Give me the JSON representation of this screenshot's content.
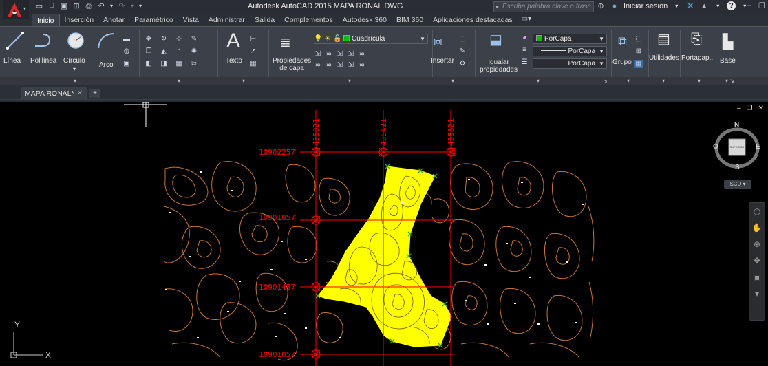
{
  "window": {
    "title": "Autodesk AutoCAD 2015   MAPA RONAL.DWG",
    "search_placeholder": "Escriba palabra clave o frase",
    "signin_label": "Iniciar sesión",
    "help_label": "?"
  },
  "ribbon_tabs": [
    {
      "label": "Inicio",
      "active": true
    },
    {
      "label": "Inserción"
    },
    {
      "label": "Anotar"
    },
    {
      "label": "Paramétrico"
    },
    {
      "label": "Vista"
    },
    {
      "label": "Administrar"
    },
    {
      "label": "Salida"
    },
    {
      "label": "Complementos"
    },
    {
      "label": "Autodesk 360"
    },
    {
      "label": "BIM 360"
    },
    {
      "label": "Aplicaciones destacadas"
    }
  ],
  "ribbon": {
    "draw": {
      "line": "Línea",
      "polyline": "Polilínea",
      "circle": "Círculo",
      "arc": "Arco"
    },
    "annotation": {
      "text": "Texto"
    },
    "layers": {
      "properties": "Propiedades\nde capa",
      "properties_l1": "Propiedades",
      "properties_l2": "de capa",
      "current_layer": "Cuadrícula",
      "layer_color": "#00c000"
    },
    "block": {
      "insert": "Insertar"
    },
    "properties": {
      "match_l1": "Igualar",
      "match_l2": "propiedades",
      "color": "PorCapa",
      "linetype": "PorCapa",
      "lineweight": "PorCapa"
    },
    "groups": {
      "group": "Grupo"
    },
    "utilities": {
      "label": "Utilidades"
    },
    "clipboard": {
      "label": "Portapap..."
    },
    "view": {
      "base": "Base"
    }
  },
  "document_tab": {
    "label": "MAPA RONAL*"
  },
  "drawing": {
    "grid_labels_y": [
      "10902257",
      "10901857",
      "10901457",
      "10901057"
    ],
    "grid_labels_x": [
      "435021",
      "435421",
      "435821"
    ],
    "parcel_fill": "#ffff00",
    "grid_color": "#ff0000",
    "contour_color": "#c87533"
  },
  "viewcube": {
    "n": "N",
    "s": "S",
    "e": "E",
    "o": "O",
    "face": "SUPERIOR",
    "scu": "SCU"
  },
  "ucs": {
    "x": "X",
    "y": "Y"
  }
}
